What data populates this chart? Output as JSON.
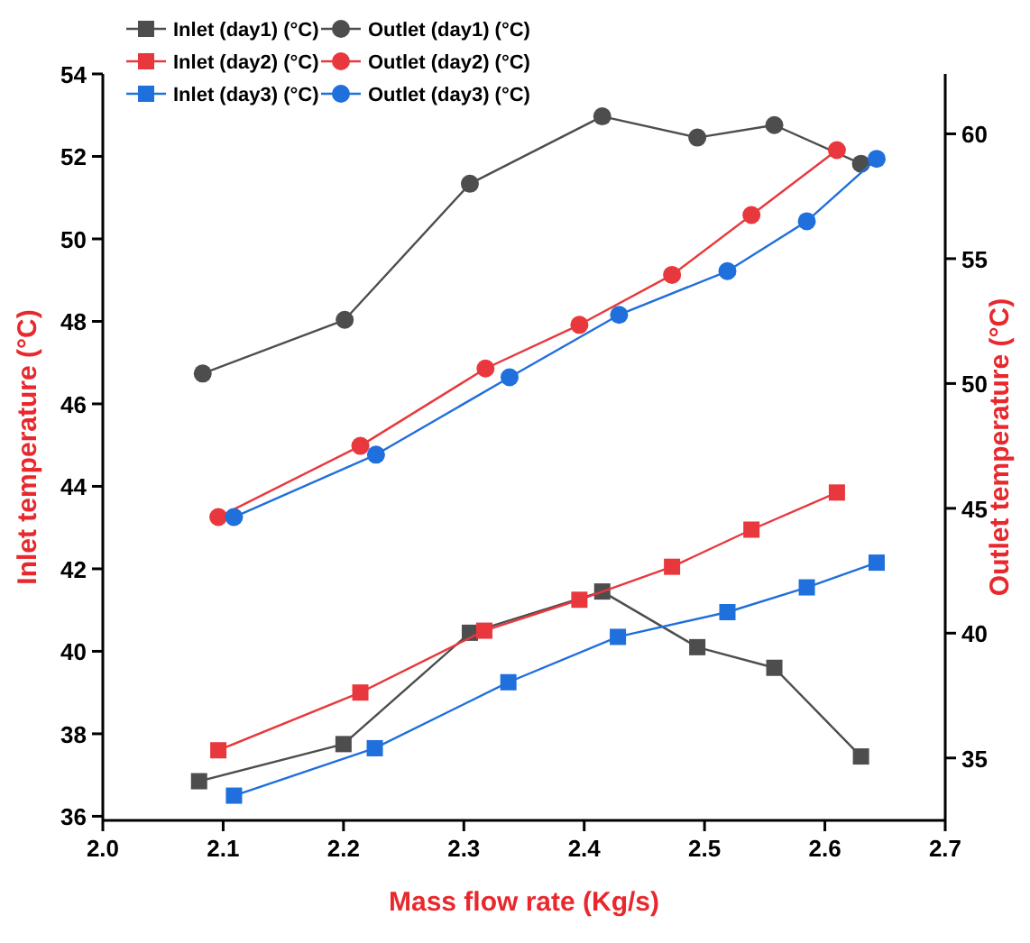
{
  "chart_data": {
    "type": "line",
    "xlabel": "Mass flow rate (Kg/s)",
    "ylabel": "Inlet temperature (°C)",
    "y2label": "Outlet temperature (°C)",
    "xlim": [
      2.0,
      2.7
    ],
    "xticks": [
      {
        "value": 2.0,
        "label": "2.0"
      },
      2.1,
      2.2,
      2.3,
      2.4,
      2.5,
      2.6,
      2.7
    ],
    "ylim": [
      35.9,
      54
    ],
    "yticks": [
      36,
      38,
      40,
      42,
      44,
      46,
      48,
      50,
      52,
      54
    ],
    "y2lim": [
      32.5,
      62.4
    ],
    "y2ticks": [
      35,
      40,
      45,
      50,
      55,
      60
    ],
    "grid": false,
    "legend": "top left",
    "line_style": "solid",
    "series": [
      {
        "name": "Inlet (day1) (°C)",
        "color": "#4d4d4d",
        "marker": "square",
        "x": [
          2.08,
          2.2,
          2.305,
          2.415,
          2.494,
          2.558,
          2.63
        ],
        "values": [
          36.85,
          37.75,
          40.45,
          41.45,
          40.1,
          39.6,
          37.45
        ]
      },
      {
        "name": "Outlet (day1) (°C)",
        "color": "#4d4d4d",
        "marker": "circle",
        "axis": "y2",
        "x": [
          2.083,
          2.201,
          2.305,
          2.415,
          2.494,
          2.558,
          2.63
        ],
        "values": [
          50.4,
          52.55,
          58.0,
          60.7,
          59.85,
          60.35,
          58.8
        ]
      },
      {
        "name": "Inlet (day2) (°C)",
        "color": "#e8383d",
        "marker": "square",
        "x": [
          2.096,
          2.214,
          2.317,
          2.396,
          2.473,
          2.539,
          2.61
        ],
        "values": [
          37.6,
          39.0,
          40.5,
          41.25,
          42.05,
          42.95,
          43.85
        ]
      },
      {
        "name": "Outlet (day2) (°C)",
        "color": "#e8383d",
        "marker": "circle",
        "axis": "y2",
        "x": [
          2.096,
          2.214,
          2.318,
          2.396,
          2.473,
          2.539,
          2.61
        ],
        "values": [
          44.65,
          47.5,
          50.6,
          52.35,
          54.35,
          56.75,
          59.35
        ]
      },
      {
        "name": "Inlet (day3) (°C)",
        "color": "#1f6fdc",
        "marker": "square",
        "x": [
          2.109,
          2.226,
          2.337,
          2.428,
          2.519,
          2.585,
          2.643
        ],
        "values": [
          36.5,
          37.65,
          39.25,
          40.35,
          40.95,
          41.55,
          42.15
        ]
      },
      {
        "name": "Outlet (day3) (°C)",
        "color": "#1f6fdc",
        "marker": "circle",
        "axis": "y2",
        "x": [
          2.109,
          2.227,
          2.338,
          2.429,
          2.519,
          2.585,
          2.643
        ],
        "values": [
          44.65,
          47.15,
          50.25,
          52.75,
          54.5,
          56.5,
          59.0
        ]
      }
    ]
  }
}
